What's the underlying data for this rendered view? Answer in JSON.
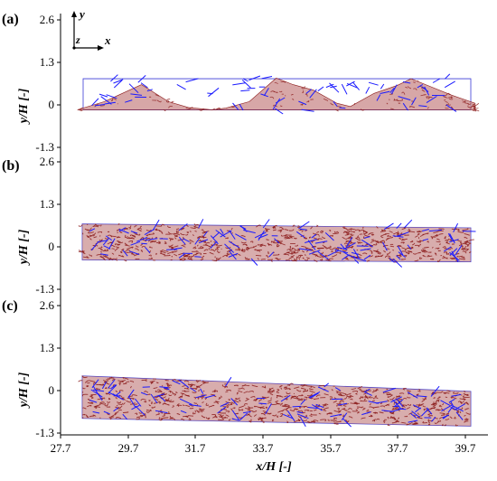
{
  "figure": {
    "panels": [
      {
        "label": "(a)"
      },
      {
        "label": "(b)"
      },
      {
        "label": "(c)"
      }
    ],
    "ylabel": "y/H [-]",
    "xlabel": "x/H [-]",
    "axes_glyph": {
      "y": "y",
      "z": "z",
      "x": "x"
    },
    "colors": {
      "structure": "#8b1a1a",
      "vector": "#1a1aff",
      "domain": "#3b3bd6"
    }
  },
  "chart_data": [
    {
      "type": "scatter",
      "panel": "(a)",
      "ylabel": "y/H [-]",
      "yticks": [
        "2.6",
        "1.3",
        "0",
        "-1.3"
      ],
      "ylim": [
        -1.3,
        2.6
      ],
      "xlim": [
        27.7,
        40.2
      ],
      "domain_top": 0.8,
      "domain_bottom": -0.15,
      "profile": [
        [
          28.2,
          -0.15
        ],
        [
          29.0,
          0.1
        ],
        [
          30.1,
          0.62
        ],
        [
          30.9,
          0.1
        ],
        [
          31.5,
          -0.08
        ],
        [
          32.2,
          -0.15
        ],
        [
          32.6,
          -0.1
        ],
        [
          33.3,
          0.1
        ],
        [
          34.1,
          0.82
        ],
        [
          34.6,
          0.62
        ],
        [
          35.2,
          0.45
        ],
        [
          35.9,
          0.05
        ],
        [
          36.3,
          -0.05
        ],
        [
          37.0,
          0.35
        ],
        [
          37.7,
          0.6
        ],
        [
          38.1,
          0.8
        ],
        [
          38.7,
          0.55
        ],
        [
          39.3,
          0.3
        ],
        [
          40.0,
          0.05
        ],
        [
          40.0,
          -0.15
        ]
      ]
    },
    {
      "type": "scatter",
      "panel": "(b)",
      "ylabel": "y/H [-]",
      "yticks": [
        "2.6",
        "1.3",
        "0",
        "-1.3"
      ],
      "ylim": [
        -1.3,
        2.6
      ],
      "xlim": [
        27.7,
        40.2
      ],
      "domain_top": 0.7,
      "domain_bottom": -0.4
    },
    {
      "type": "scatter",
      "panel": "(c)",
      "ylabel": "y/H [-]",
      "xlabel": "x/H [-]",
      "yticks": [
        "2.6",
        "1.3",
        "0",
        "-1.3"
      ],
      "xticks": [
        "27.7",
        "29.7",
        "31.7",
        "33.7",
        "35.7",
        "37.7",
        "39.7"
      ],
      "ylim": [
        -1.3,
        2.6
      ],
      "xlim": [
        27.7,
        40.2
      ],
      "domain_top": 0.45,
      "domain_bottom": -0.85
    }
  ]
}
